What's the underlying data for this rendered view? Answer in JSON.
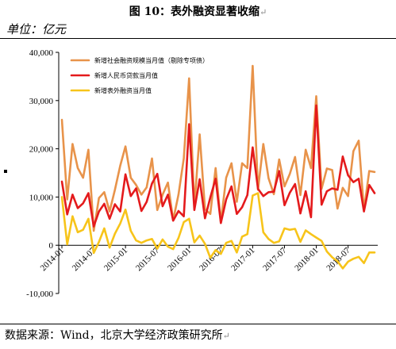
{
  "header": {
    "title": "图 10：表外融资显著收缩",
    "title_mark": "↵"
  },
  "unit_label": "单位：亿元",
  "source": {
    "text": "数据来源：Wind，北京大学经济政策研究所",
    "mark": "↵"
  },
  "colors": {
    "series_1": "#E8934A",
    "series_2": "#E41A1C",
    "series_3": "#F7C41A",
    "axis": "#000000"
  },
  "chart_data": {
    "type": "line",
    "x": [
      "2014-01",
      "2014-02",
      "2014-03",
      "2014-04",
      "2014-05",
      "2014-06",
      "2014-07",
      "2014-08",
      "2014-09",
      "2014-10",
      "2014-11",
      "2014-12",
      "2015-01",
      "2015-02",
      "2015-03",
      "2015-04",
      "2015-05",
      "2015-06",
      "2015-07",
      "2015-08",
      "2015-09",
      "2015-10",
      "2015-11",
      "2015-12",
      "2016-01",
      "2016-02",
      "2016-03",
      "2016-04",
      "2016-05",
      "2016-06",
      "2016-07",
      "2016-08",
      "2016-09",
      "2016-10",
      "2016-11",
      "2016-12",
      "2017-01",
      "2017-02",
      "2017-03",
      "2017-04",
      "2017-05",
      "2017-06",
      "2017-07",
      "2017-08",
      "2017-09",
      "2017-10",
      "2017-11",
      "2017-12",
      "2018-01",
      "2018-02",
      "2018-03",
      "2018-04",
      "2018-05",
      "2018-06",
      "2018-07",
      "2018-08",
      "2018-09",
      "2018-10",
      "2018-11",
      "2018-12"
    ],
    "xticks": [
      "2014-01",
      "2014-07",
      "2015-01",
      "2015-07",
      "2016-01",
      "2016-07",
      "2017-01",
      "2017-07",
      "2018-01",
      "2018-07"
    ],
    "ylim": [
      -10000,
      40000
    ],
    "yticks": [
      -10000,
      0,
      10000,
      20000,
      30000,
      40000
    ],
    "ytick_labels": [
      "-10,000",
      "0",
      "10,000",
      "20,000",
      "30,000",
      "40,000"
    ],
    "legend_position": "top-left",
    "grid": false,
    "series": [
      {
        "name": "新增社会融资规模当月值（剔除专项债）",
        "values": [
          26000,
          9500,
          21000,
          16000,
          14000,
          19800,
          3000,
          9800,
          11000,
          7000,
          11500,
          16500,
          20500,
          14000,
          12500,
          10500,
          12000,
          18000,
          7300,
          10500,
          13000,
          5200,
          10500,
          18000,
          34600,
          8000,
          23000,
          7500,
          6500,
          16000,
          4800,
          14000,
          17000,
          9000,
          17000,
          16000,
          37200,
          11500,
          21000,
          13900,
          10600,
          17800,
          12200,
          14800,
          18300,
          10400,
          19800,
          16000,
          30900,
          11700,
          15900,
          15600,
          7600,
          11900,
          10200,
          19500,
          21700,
          7300,
          15400,
          15200
        ]
      },
      {
        "name": "新增人民币贷款当月值",
        "values": [
          13200,
          6400,
          10500,
          7700,
          8700,
          10800,
          3900,
          7000,
          8600,
          5500,
          8500,
          7000,
          14700,
          10200,
          11800,
          7100,
          9000,
          12800,
          14800,
          8100,
          10500,
          5100,
          7100,
          6000,
          25100,
          7300,
          13700,
          5600,
          9900,
          13800,
          4600,
          9500,
          12200,
          6500,
          7900,
          10400,
          20300,
          11700,
          10200,
          11000,
          11100,
          15400,
          8300,
          10900,
          12700,
          6600,
          11200,
          5800,
          29000,
          8400,
          11200,
          11800,
          11500,
          18400,
          14500,
          13100,
          13800,
          7000,
          12500,
          10800
        ]
      },
      {
        "name": "新增表外融资当月值",
        "values": [
          10000,
          200,
          6000,
          2700,
          3200,
          5500,
          -1600,
          700,
          3500,
          -500,
          2400,
          4500,
          7400,
          3000,
          1000,
          500,
          1000,
          1300,
          -700,
          1200,
          -300,
          -800,
          1500,
          4800,
          5500,
          600,
          2000,
          300,
          -2600,
          -1000,
          -1800,
          500,
          900,
          -1500,
          1800,
          2300,
          10300,
          10800,
          2700,
          1300,
          500,
          800,
          3500,
          3200,
          3400,
          700,
          3100,
          2300,
          1600,
          900,
          -1300,
          -2500,
          -3300,
          -4800,
          -3400,
          -2800,
          -2400,
          -3700,
          -1500,
          -1500
        ]
      }
    ]
  }
}
